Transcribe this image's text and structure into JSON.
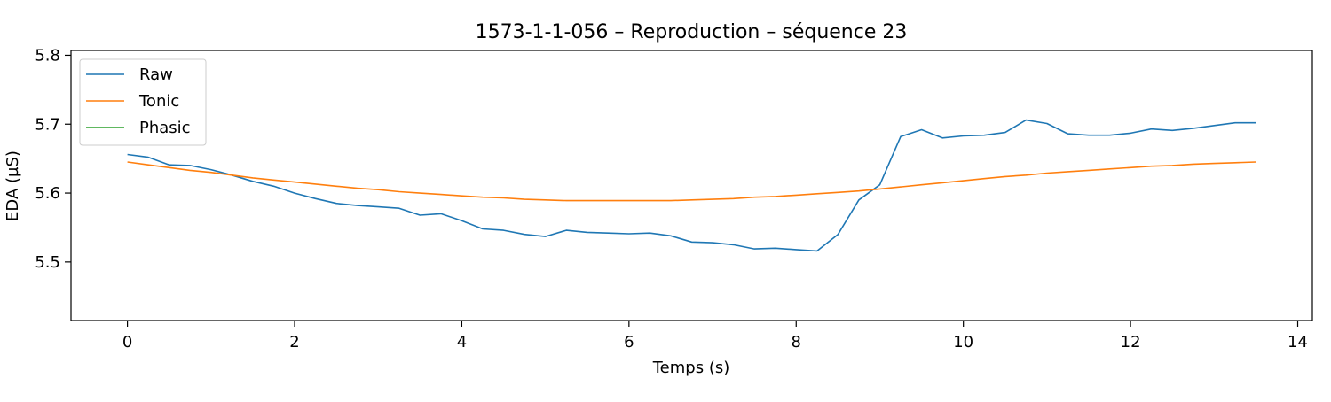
{
  "chart_data": {
    "type": "line",
    "title": "1573-1-1-056 – Reproduction – séquence 23",
    "xlabel": "Temps (s)",
    "ylabel": "EDA (µS)",
    "xlim": [
      -0.675,
      14.175
    ],
    "ylim": [
      5.415,
      5.807
    ],
    "xticks": [
      0,
      2,
      4,
      6,
      8,
      10,
      12,
      14
    ],
    "xtick_labels": [
      "0",
      "2",
      "4",
      "6",
      "8",
      "10",
      "12",
      "14"
    ],
    "yticks": [
      5.5,
      5.6,
      5.7,
      5.8
    ],
    "ytick_labels": [
      "5.5",
      "5.6",
      "5.7",
      "5.8"
    ],
    "grid": false,
    "legend_position": "top-left",
    "series": [
      {
        "name": "Raw",
        "color": "#1f77b4",
        "x": [
          0,
          0.25,
          0.5,
          0.75,
          1.0,
          1.25,
          1.5,
          1.75,
          2.0,
          2.25,
          2.5,
          2.75,
          3.0,
          3.25,
          3.5,
          3.75,
          4.0,
          4.25,
          4.5,
          4.75,
          5.0,
          5.25,
          5.5,
          5.75,
          6.0,
          6.25,
          6.5,
          6.75,
          7.0,
          7.25,
          7.5,
          7.75,
          8.0,
          8.25,
          8.5,
          8.75,
          9.0,
          9.25,
          9.5,
          9.75,
          10.0,
          10.25,
          10.5,
          10.75,
          11.0,
          11.25,
          11.5,
          11.75,
          12.0,
          12.25,
          12.5,
          12.75,
          13.0,
          13.25,
          13.5
        ],
        "y": [
          5.656,
          5.652,
          5.641,
          5.64,
          5.634,
          5.626,
          5.617,
          5.61,
          5.6,
          5.592,
          5.585,
          5.582,
          5.58,
          5.578,
          5.568,
          5.57,
          5.56,
          5.548,
          5.546,
          5.54,
          5.537,
          5.546,
          5.543,
          5.542,
          5.541,
          5.542,
          5.538,
          5.529,
          5.528,
          5.525,
          5.519,
          5.52,
          5.518,
          5.516,
          5.54,
          5.59,
          5.612,
          5.682,
          5.692,
          5.68,
          5.683,
          5.684,
          5.688,
          5.706,
          5.701,
          5.686,
          5.684,
          5.684,
          5.687,
          5.693,
          5.691,
          5.694,
          5.698,
          5.702,
          5.702
        ]
      },
      {
        "name": "Tonic",
        "color": "#ff7f0e",
        "x": [
          0,
          0.25,
          0.5,
          0.75,
          1.0,
          1.25,
          1.5,
          1.75,
          2.0,
          2.25,
          2.5,
          2.75,
          3.0,
          3.25,
          3.5,
          3.75,
          4.0,
          4.25,
          4.5,
          4.75,
          5.0,
          5.25,
          5.5,
          5.75,
          6.0,
          6.25,
          6.5,
          6.75,
          7.0,
          7.25,
          7.5,
          7.75,
          8.0,
          8.25,
          8.5,
          8.75,
          9.0,
          9.25,
          9.5,
          9.75,
          10.0,
          10.25,
          10.5,
          10.75,
          11.0,
          11.25,
          11.5,
          11.75,
          12.0,
          12.25,
          12.5,
          12.75,
          13.0,
          13.25,
          13.5
        ],
        "y": [
          5.645,
          5.641,
          5.637,
          5.633,
          5.63,
          5.626,
          5.622,
          5.619,
          5.616,
          5.613,
          5.61,
          5.607,
          5.605,
          5.602,
          5.6,
          5.598,
          5.596,
          5.594,
          5.593,
          5.591,
          5.59,
          5.589,
          5.589,
          5.589,
          5.589,
          5.589,
          5.589,
          5.59,
          5.591,
          5.592,
          5.594,
          5.595,
          5.597,
          5.599,
          5.601,
          5.603,
          5.606,
          5.609,
          5.612,
          5.615,
          5.618,
          5.621,
          5.624,
          5.626,
          5.629,
          5.631,
          5.633,
          5.635,
          5.637,
          5.639,
          5.64,
          5.642,
          5.643,
          5.644,
          5.645
        ]
      },
      {
        "name": "Phasic",
        "color": "#2ca02c",
        "x": [],
        "y": []
      }
    ]
  }
}
